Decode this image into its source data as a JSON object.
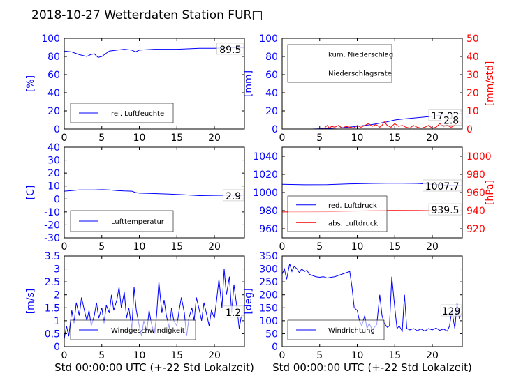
{
  "title": "2018-10-27 Wetterdaten Station FUR□",
  "xlabel": "Std 00:00:00 UTC (+-22 Std Lokalzeit)",
  "colors": {
    "primary": "#0000ff",
    "secondary": "#ff0000",
    "axis": "#000000"
  },
  "chart_data": [
    {
      "type": "line",
      "xlim": [
        0,
        24
      ],
      "ylim": [
        0,
        100
      ],
      "xticks": [
        0,
        5,
        10,
        15,
        20
      ],
      "yticks": [
        0,
        20,
        40,
        60,
        80,
        100
      ],
      "ylabel": "[%]",
      "legend_placement": "lower-left",
      "series": [
        {
          "name": "rel. Luftfeuchte",
          "axis": "left",
          "x": [
            0,
            1,
            2,
            3,
            3.5,
            4,
            4.5,
            5,
            5.5,
            6,
            7,
            8,
            9,
            9.5,
            10,
            12,
            15,
            18,
            20,
            22,
            23.9
          ],
          "values": [
            86,
            85,
            82,
            80,
            82,
            83,
            79,
            80,
            83,
            86,
            87,
            88,
            87,
            85,
            87,
            88,
            88,
            89,
            89,
            89.5,
            89.5
          ]
        }
      ],
      "annotations": [
        "89.5"
      ]
    },
    {
      "type": "line",
      "xlim": [
        0,
        24
      ],
      "ylim": [
        0,
        100
      ],
      "y2lim": [
        0,
        50
      ],
      "xticks": [
        0,
        5,
        10,
        15,
        20
      ],
      "yticks": [
        0,
        20,
        40,
        60,
        80,
        100
      ],
      "y2ticks": [
        0,
        10,
        20,
        30,
        40,
        50
      ],
      "ylabel": "[mm]",
      "y2label": "[mm/std]",
      "legend_placement": "upper-left",
      "series": [
        {
          "name": "kum. Niederschlag",
          "axis": "left",
          "x": [
            0,
            4,
            6,
            8,
            10,
            12,
            13,
            14,
            15,
            16,
            18,
            20,
            22,
            23.9
          ],
          "values": [
            0,
            0,
            0.5,
            1.5,
            3,
            5,
            6.5,
            8,
            10,
            11,
            12.5,
            14,
            16,
            17.02
          ]
        },
        {
          "name": "Niederschlagsrate",
          "axis": "right",
          "x": [
            0,
            5.5,
            6,
            6.3,
            6.6,
            7,
            7.5,
            8,
            8.5,
            9,
            9.5,
            10,
            10.5,
            11,
            11.5,
            12,
            12.5,
            13,
            13.3,
            13.6,
            14,
            14.5,
            15,
            15.5,
            16,
            16.5,
            17,
            17.5,
            18,
            18.5,
            19,
            19.5,
            20,
            20.5,
            21,
            21.5,
            22,
            22.5,
            23,
            23.5,
            23.9
          ],
          "values": [
            0,
            0,
            2,
            0.5,
            1.5,
            1,
            2,
            0.5,
            1.5,
            1,
            0.5,
            2,
            1,
            2,
            3,
            1.5,
            2.5,
            1,
            2,
            4,
            2,
            1,
            3,
            1.5,
            2,
            1,
            0.5,
            2,
            1,
            0.5,
            1,
            2,
            0.5,
            1,
            3,
            1.5,
            2,
            1,
            2,
            5,
            2.8
          ]
        }
      ],
      "annotations": [
        "17.02",
        "2.8"
      ]
    },
    {
      "type": "line",
      "xlim": [
        0,
        24
      ],
      "ylim": [
        -30,
        40
      ],
      "xticks": [
        0,
        5,
        10,
        15,
        20
      ],
      "yticks": [
        -30,
        -20,
        -10,
        0,
        10,
        20,
        30,
        40
      ],
      "ylabel": "[C]",
      "legend_placement": "lower-left",
      "series": [
        {
          "name": "Lufttemperatur",
          "axis": "left",
          "x": [
            0,
            1,
            2,
            3,
            4,
            5,
            6,
            7,
            8,
            9,
            9.5,
            10,
            12,
            14,
            16,
            18,
            20,
            22,
            23.9
          ],
          "values": [
            6,
            6.5,
            7,
            7,
            7,
            7.2,
            7,
            6.5,
            6.2,
            6,
            5,
            4.5,
            4.2,
            3.8,
            3.2,
            2.6,
            2.8,
            2.9,
            2.9
          ]
        }
      ],
      "annotations": [
        "2.9"
      ]
    },
    {
      "type": "line",
      "xlim": [
        0,
        24
      ],
      "ylim": [
        950,
        1050
      ],
      "y2lim": [
        910,
        1010
      ],
      "xticks": [
        0,
        5,
        10,
        15,
        20
      ],
      "yticks": [
        960,
        980,
        1000,
        1020,
        1040
      ],
      "y2ticks": [
        920,
        940,
        960,
        980,
        1000
      ],
      "ylabel": "",
      "y2label": "[hPa]",
      "legend_placement": "lower-left",
      "series": [
        {
          "name": "red. Luftdruck",
          "axis": "left",
          "x": [
            0,
            3,
            6,
            9,
            12,
            15,
            18,
            20,
            22,
            23.9
          ],
          "values": [
            1009,
            1008.5,
            1008.7,
            1009.5,
            1010,
            1010.3,
            1010,
            1009,
            1008,
            1007.7
          ]
        },
        {
          "name": "abs. Luftdruck",
          "axis": "right",
          "x": [
            0,
            3,
            6,
            9,
            12,
            15,
            18,
            20,
            22,
            23.9
          ],
          "values": [
            938.5,
            938.6,
            938.8,
            939.3,
            940,
            940.2,
            940.1,
            939.9,
            939.6,
            939.5
          ]
        }
      ],
      "annotations": [
        "1007.7",
        "939.5"
      ]
    },
    {
      "type": "line",
      "xlim": [
        0,
        24
      ],
      "ylim": [
        0,
        3.5
      ],
      "xticks": [
        0,
        5,
        10,
        15,
        20
      ],
      "yticks": [
        0,
        0.5,
        1,
        1.5,
        2,
        2.5,
        3,
        3.5
      ],
      "ylabel": "[m/s]",
      "legend_placement": "lower-center",
      "series": [
        {
          "name": "Windgeschwindigkeit",
          "axis": "left",
          "x": [
            0,
            0.3,
            0.6,
            1,
            1.3,
            1.6,
            2,
            2.3,
            2.6,
            3,
            3.3,
            3.6,
            4,
            4.3,
            4.6,
            5,
            5.3,
            5.6,
            6,
            6.3,
            6.6,
            7,
            7.3,
            7.6,
            8,
            8.3,
            8.6,
            9,
            9.3,
            9.6,
            10,
            10.3,
            10.6,
            11,
            11.3,
            11.6,
            12,
            12.3,
            12.6,
            13,
            13.3,
            13.6,
            14,
            14.3,
            14.6,
            15,
            15.3,
            15.6,
            16,
            16.3,
            16.6,
            17,
            17.3,
            17.6,
            18,
            18.3,
            18.6,
            19,
            19.3,
            19.6,
            20,
            20.3,
            20.6,
            21,
            21.3,
            21.6,
            22,
            22.3,
            22.6,
            23,
            23.3,
            23.6,
            23.9
          ],
          "values": [
            0.3,
            0.8,
            0.4,
            1.4,
            0.9,
            1.7,
            1.2,
            1.9,
            1.5,
            1.0,
            1.4,
            0.8,
            1.2,
            1.7,
            1.1,
            1.5,
            0.9,
            1.6,
            1.3,
            2.0,
            1.4,
            1.8,
            2.3,
            1.5,
            2.1,
            1.1,
            1.5,
            0.7,
            2.3,
            1.4,
            0.8,
            0.4,
            1.0,
            0.6,
            1.4,
            0.9,
            0.5,
            1.2,
            2.5,
            1.3,
            1.8,
            1.2,
            0.7,
            1.5,
            1.0,
            0.8,
            1.4,
            1.9,
            1.3,
            0.4,
            1.1,
            1.5,
            1.0,
            1.9,
            1.4,
            1.0,
            1.7,
            1.2,
            0.8,
            1.4,
            1.1,
            1.8,
            2.6,
            1.5,
            3.0,
            2.0,
            2.7,
            1.3,
            2.4,
            1.5,
            0.7,
            1.2,
            1.2
          ]
        }
      ],
      "annotations": [
        "1.2"
      ]
    },
    {
      "type": "line",
      "xlim": [
        0,
        24
      ],
      "ylim": [
        0,
        350
      ],
      "xticks": [
        0,
        5,
        10,
        15,
        20
      ],
      "yticks": [
        0,
        50,
        100,
        150,
        200,
        250,
        300,
        350
      ],
      "ylabel": "[deg]",
      "legend_placement": "lower-left",
      "series": [
        {
          "name": "Windrichtung",
          "axis": "left",
          "x": [
            0,
            0.3,
            0.6,
            1,
            1.3,
            1.6,
            2,
            2.3,
            2.6,
            3,
            3.3,
            3.6,
            4,
            4.5,
            5,
            5.5,
            6,
            6.5,
            7,
            7.5,
            8,
            8.5,
            9,
            9.3,
            9.6,
            10,
            10.3,
            10.6,
            11,
            11.3,
            11.6,
            12,
            12.3,
            12.6,
            13,
            13.3,
            13.6,
            14,
            14.3,
            14.6,
            15,
            15.3,
            15.6,
            16,
            16.3,
            16.6,
            17,
            17.5,
            18,
            18.5,
            19,
            19.5,
            20,
            20.5,
            21,
            21.5,
            22,
            22.3,
            22.6,
            23,
            23.3,
            23.6,
            23.9
          ],
          "values": [
            280,
            300,
            260,
            320,
            290,
            310,
            300,
            285,
            300,
            290,
            295,
            280,
            275,
            270,
            268,
            270,
            265,
            268,
            270,
            275,
            280,
            285,
            290,
            230,
            150,
            140,
            100,
            80,
            120,
            70,
            90,
            65,
            75,
            85,
            200,
            120,
            90,
            75,
            80,
            270,
            150,
            70,
            80,
            60,
            200,
            70,
            65,
            70,
            62,
            68,
            60,
            70,
            65,
            72,
            63,
            68,
            60,
            80,
            140,
            70,
            170,
            110,
            129
          ]
        }
      ],
      "annotations": [
        "129"
      ]
    }
  ]
}
